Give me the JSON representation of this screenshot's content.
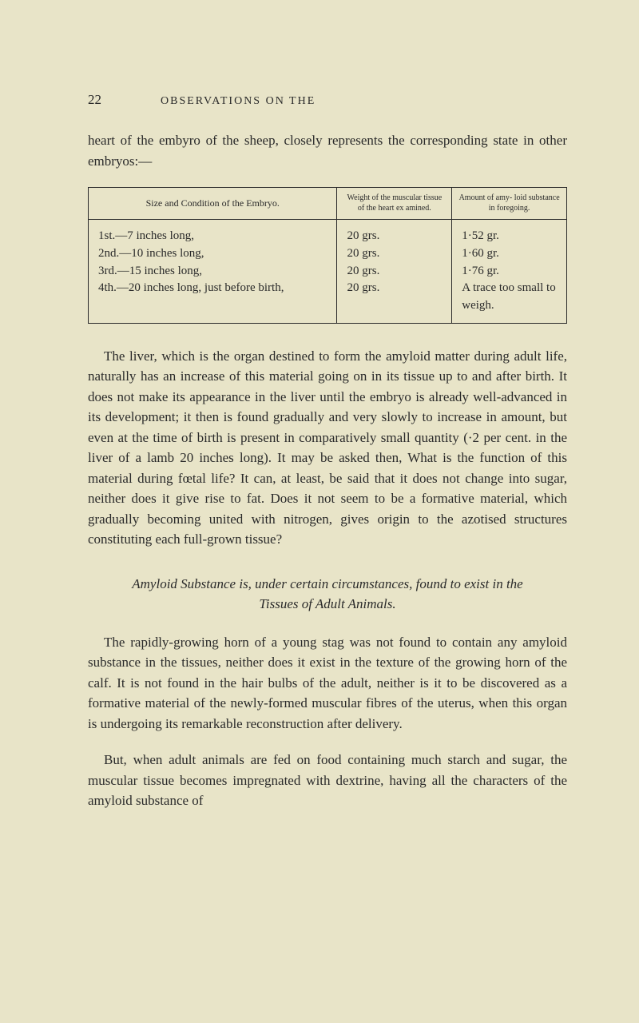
{
  "header": {
    "page_number": "22",
    "running_title": "OBSERVATIONS ON THE"
  },
  "paragraphs": {
    "intro": "heart of the embyro of the sheep, closely represents the corresponding state in other embryos:—",
    "liver": "The liver, which is the organ destined to form the amyloid matter during adult life, naturally has an increase of this material going on in its tissue up to and after birth. It does not make its appearance in the liver until the embryo is already well-advanced in its development; it then is found gradually and very slowly to increase in amount, but even at the time of birth is present in comparatively small quantity (·2 per cent. in the liver of a lamb 20 inches long). It may be asked then, What is the function of this material during fœtal life? It can, at least, be said that it does not change into sugar, neither does it give rise to fat. Does it not seem to be a formative material, which gradually becoming united with nitrogen, gives origin to the azotised structures constituting each full-grown tissue?",
    "section_heading": "Amyloid Substance is, under certain circumstances, found to exist in the Tissues of Adult Animals.",
    "horn": "The rapidly-growing horn of a young stag was not found to contain any amyloid substance in the tissues, neither does it exist in the texture of the growing horn of the calf. It is not found in the hair bulbs of the adult, neither is it to be discovered as a formative material of the newly-formed muscular fibres of the uterus, when this organ is undergoing its remarkable reconstruction after delivery.",
    "adult": "But, when adult animals are fed on food containing much starch and sugar, the muscular tissue becomes impregnated with dextrine, having all the characters of the amyloid substance of"
  },
  "table": {
    "headers": {
      "col1": "Size and Condition of the Embryo.",
      "col2": "Weight of the muscular tissue of the heart ex amined.",
      "col3": "Amount of amy- loid substance in foregoing."
    },
    "rows": [
      {
        "c1": "1st.—7 inches long,",
        "c2": "20 grs.",
        "c3": "1·52 gr."
      },
      {
        "c1": "2nd.—10 inches long,",
        "c2": "20 grs.",
        "c3": "1·60 gr."
      },
      {
        "c1": "3rd.—15 inches long,",
        "c2": "20 grs.",
        "c3": "1·76 gr."
      },
      {
        "c1": "4th.—20 inches long, just before birth,",
        "c2": "20 grs.",
        "c3": "A trace too small to weigh."
      }
    ]
  }
}
